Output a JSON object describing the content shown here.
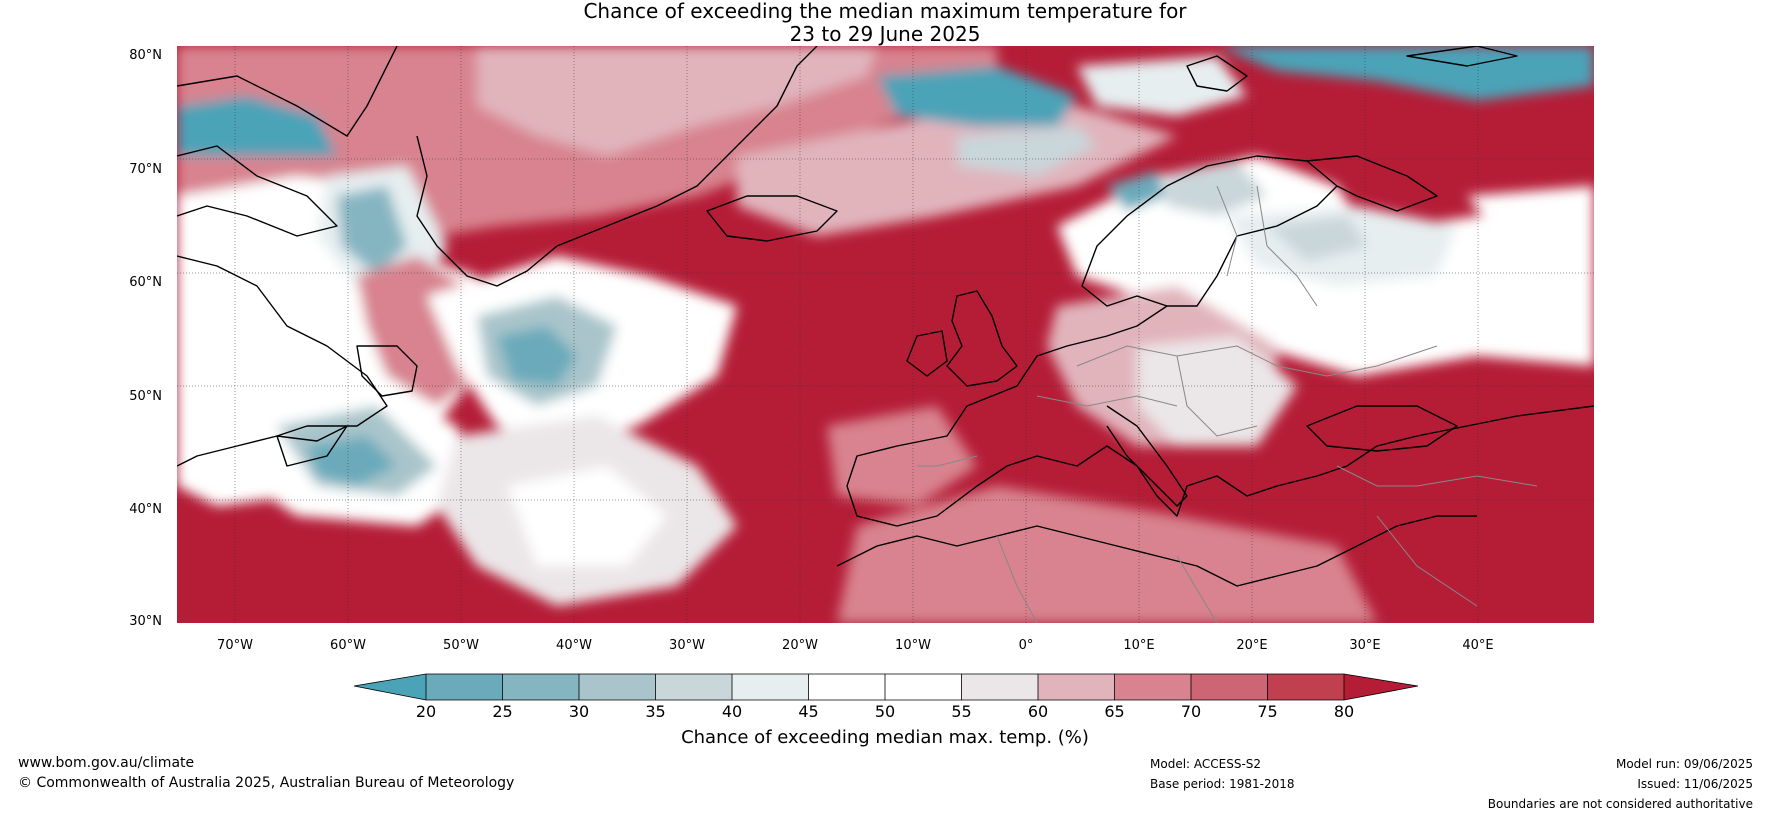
{
  "title": {
    "line1": "Chance of exceeding the median maximum temperature for",
    "line2": "23 to 29 June 2025"
  },
  "map": {
    "region": "North Atlantic and Europe",
    "lat_labels": [
      "80°N",
      "70°N",
      "60°N",
      "50°N",
      "40°N",
      "30°N"
    ],
    "lon_labels": [
      "70°W",
      "60°W",
      "50°W",
      "40°W",
      "30°W",
      "20°W",
      "10°W",
      "0°",
      "10°E",
      "20°E",
      "30°E",
      "40°E"
    ],
    "palette": {
      "below_20": "#4ba3b8",
      "20_25": "#6aaabb",
      "25_30": "#86b5c2",
      "30_35": "#a9c5cb",
      "35_40": "#c9d6da",
      "40_45": "#e6eef0",
      "45_50": "#ffffff",
      "50_55": "#ffffff",
      "55_60": "#ebe6e8",
      "60_65": "#e1b4bc",
      "65_70": "#d8838f",
      "70_75": "#cc6674",
      "75_80": "#c1404f",
      "above_80": "#b51d37"
    }
  },
  "colorbar": {
    "ticks": [
      "20",
      "25",
      "30",
      "35",
      "40",
      "45",
      "50",
      "55",
      "60",
      "65",
      "70",
      "75",
      "80"
    ],
    "label": "Chance of exceeding median max. temp. (%)"
  },
  "footer": {
    "website": "www.bom.gov.au/climate",
    "copyright": "© Commonwealth of Australia 2025, Australian Bureau of Meteorology",
    "model": "Model: ACCESS-S2",
    "base_period": "Base period: 1981-2018",
    "model_run": "Model run: 09/06/2025",
    "issued": "Issued: 11/06/2025",
    "disclaimer": "Boundaries are not considered authoritative"
  }
}
